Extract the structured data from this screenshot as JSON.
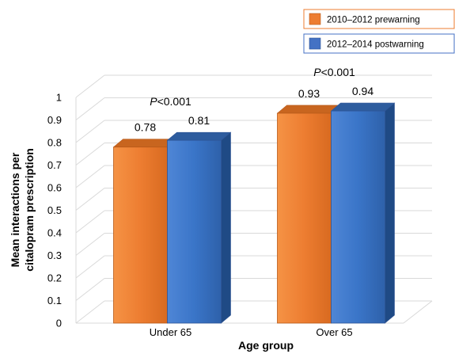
{
  "chart_data": {
    "type": "bar",
    "categories": [
      "Under 65",
      "Over 65"
    ],
    "series": [
      {
        "name": "2010–2012 prewarning",
        "values": [
          0.78,
          0.93
        ],
        "color": "#ED7D31"
      },
      {
        "name": "2012–2014 postwarning",
        "values": [
          0.81,
          0.94
        ],
        "color": "#4472C4"
      }
    ],
    "data_labels": [
      [
        "0.78",
        "0.81"
      ],
      [
        "0.93",
        "0.94"
      ]
    ],
    "annotations": [
      {
        "category": "Under 65",
        "italic": "P",
        "rest": "<0.001"
      },
      {
        "category": "Over 65",
        "italic": "P",
        "rest": "<0.001"
      }
    ],
    "xlabel": "Age group",
    "ylabel_lines": [
      "Mean interactions per",
      "citalopram prescription"
    ],
    "ylim": [
      0,
      1
    ],
    "yticks": [
      "0",
      "0.1",
      "0.2",
      "0.3",
      "0.4",
      "0.5",
      "0.6",
      "0.7",
      "0.8",
      "0.9",
      "1"
    ],
    "style": "3d",
    "grid": true,
    "legend_position": "top-right"
  }
}
